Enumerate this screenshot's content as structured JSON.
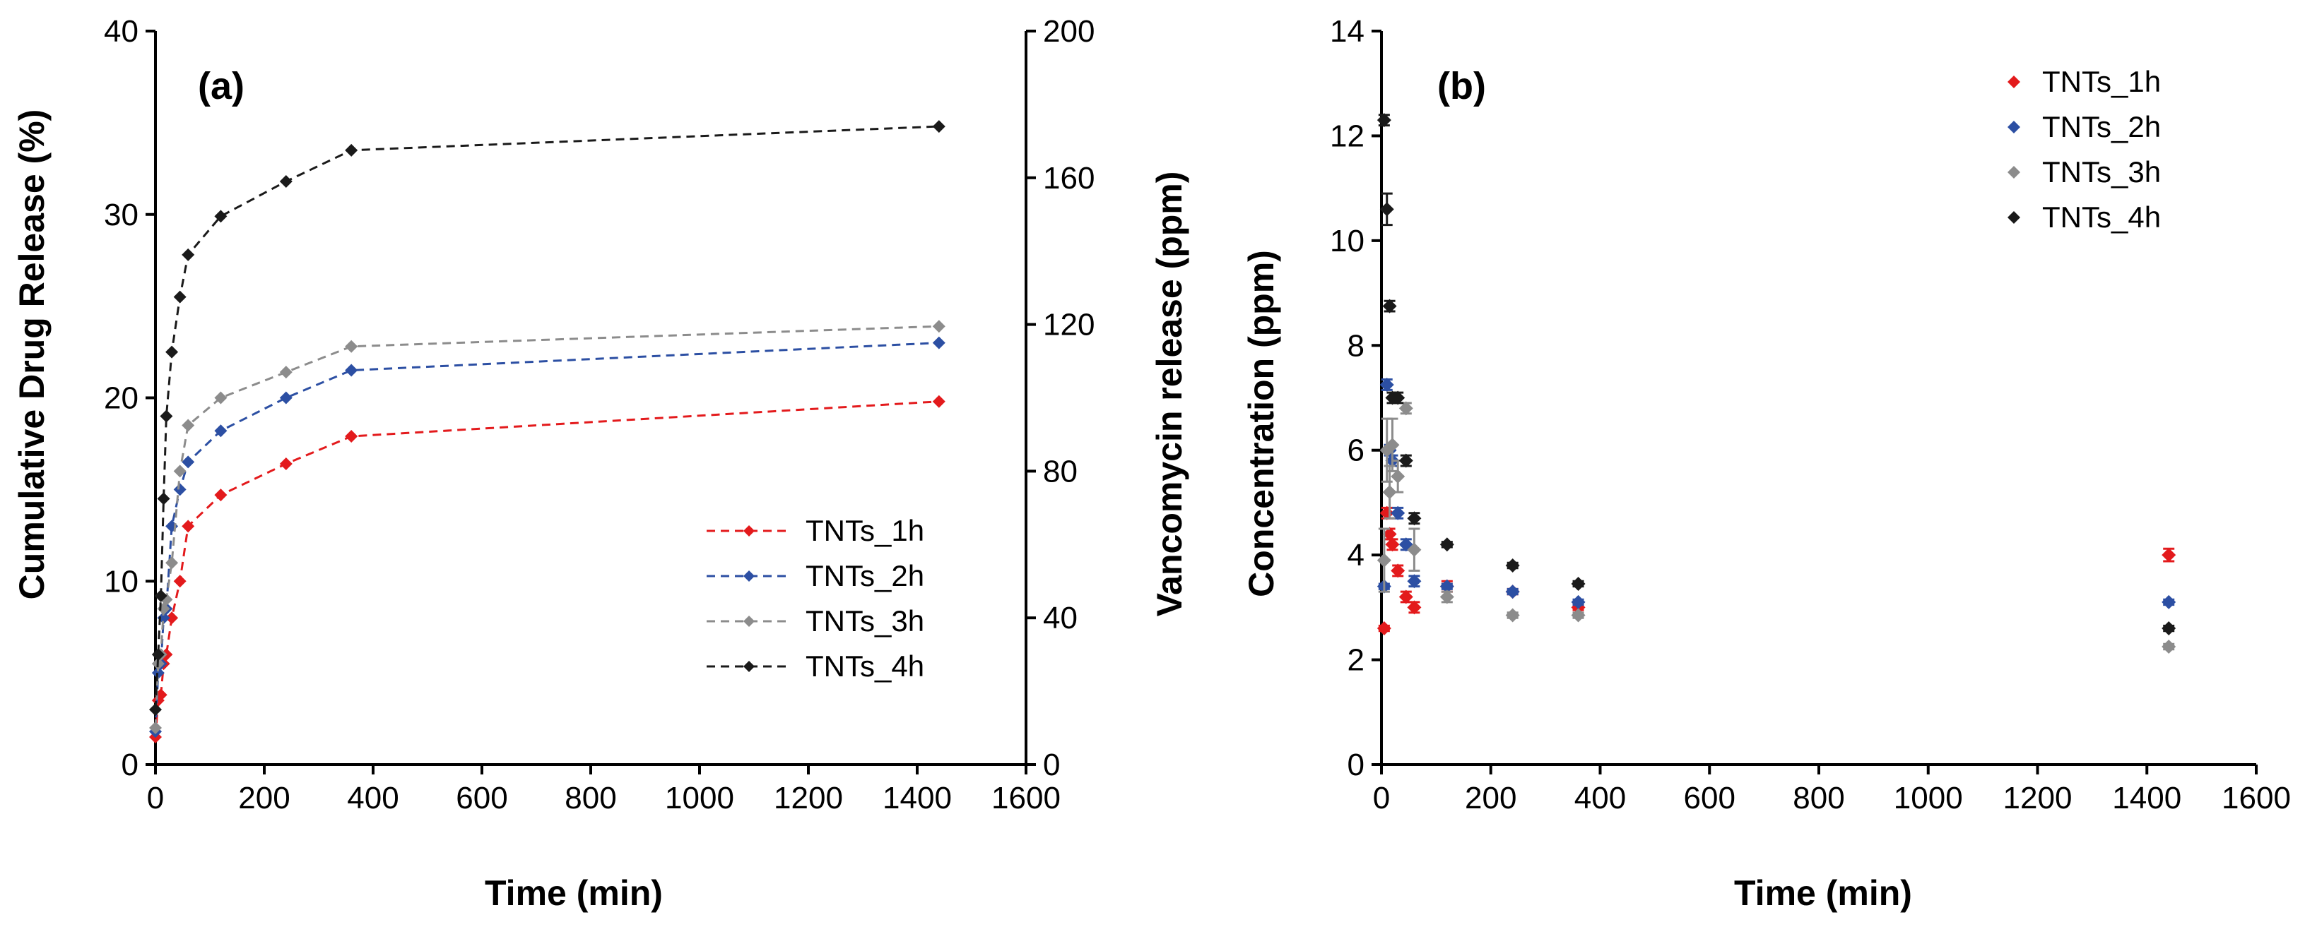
{
  "chart_data": [
    {
      "type": "line",
      "panel_label": "(a)",
      "xlabel": "Time (min)",
      "ylabel": "Cumulative Drug Release (%)",
      "y2label": "Vancomycin release (ppm)",
      "xlim": [
        0,
        1600
      ],
      "ylim": [
        0,
        40
      ],
      "y2lim": [
        0,
        200
      ],
      "xticks": [
        "0",
        "200",
        "400",
        "600",
        "800",
        "1000",
        "1200",
        "1400",
        "1600"
      ],
      "yticks": [
        "0",
        "10",
        "20",
        "30",
        "40"
      ],
      "y2ticks": [
        "0",
        "40",
        "80",
        "120",
        "160",
        "200"
      ],
      "legend_position": "center-right",
      "x": [
        0,
        5,
        10,
        15,
        20,
        30,
        45,
        60,
        120,
        240,
        360,
        1440
      ],
      "series": [
        {
          "name": "TNTs_1h",
          "color": "#e31a1c",
          "values": [
            1.5,
            3.5,
            3.8,
            5.5,
            6.0,
            8.0,
            10.0,
            13.0,
            14.7,
            16.4,
            17.9,
            19.8
          ]
        },
        {
          "name": "TNTs_2h",
          "color": "#2c4fa3",
          "values": [
            1.8,
            5.0,
            5.5,
            8.0,
            8.5,
            13.0,
            15.0,
            16.5,
            18.2,
            20.0,
            21.5,
            23.0
          ]
        },
        {
          "name": "TNTs_3h",
          "color": "#8c8c8c",
          "values": [
            2.0,
            5.5,
            6.0,
            8.5,
            9.0,
            11.0,
            16.0,
            18.5,
            20.0,
            21.4,
            22.8,
            23.9
          ]
        },
        {
          "name": "TNTs_4h",
          "color": "#1a1a1a",
          "values": [
            3.0,
            6.0,
            9.2,
            14.5,
            19.0,
            22.5,
            25.5,
            27.8,
            29.9,
            31.8,
            33.5,
            34.8
          ]
        }
      ]
    },
    {
      "type": "scatter",
      "panel_label": "(b)",
      "xlabel": "Time (min)",
      "ylabel": "Concentration (ppm)",
      "xlim": [
        0,
        1600
      ],
      "ylim": [
        0,
        14
      ],
      "xticks": [
        "0",
        "200",
        "400",
        "600",
        "800",
        "1000",
        "1200",
        "1400",
        "1600"
      ],
      "yticks": [
        "0",
        "2",
        "4",
        "6",
        "8",
        "10",
        "12",
        "14"
      ],
      "legend_position": "top-right",
      "x": [
        5,
        10,
        15,
        20,
        30,
        45,
        60,
        120,
        240,
        360,
        1440
      ],
      "series": [
        {
          "name": "TNTs_1h",
          "color": "#e31a1c",
          "values": [
            2.6,
            4.8,
            4.4,
            4.2,
            3.7,
            3.2,
            3.0,
            3.4,
            3.3,
            3.0,
            4.0
          ],
          "errors": [
            0.05,
            0.1,
            0.1,
            0.1,
            0.1,
            0.1,
            0.1,
            0.1,
            0.05,
            0.05,
            0.12
          ]
        },
        {
          "name": "TNTs_2h",
          "color": "#2c4fa3",
          "values": [
            3.4,
            7.25,
            6.0,
            5.8,
            4.8,
            4.2,
            3.5,
            3.4,
            3.3,
            3.1,
            3.1
          ],
          "errors": [
            0.05,
            0.1,
            0.1,
            0.1,
            0.1,
            0.1,
            0.1,
            0.05,
            0.05,
            0.05,
            0.05
          ]
        },
        {
          "name": "TNTs_3h",
          "color": "#8c8c8c",
          "values": [
            3.9,
            6.0,
            5.2,
            6.1,
            5.5,
            6.8,
            4.1,
            3.2,
            2.85,
            2.85,
            2.25
          ],
          "errors": [
            0.6,
            0.6,
            0.5,
            0.5,
            0.3,
            0.1,
            0.4,
            0.1,
            0.05,
            0.05,
            0.05
          ]
        },
        {
          "name": "TNTs_4h",
          "color": "#1a1a1a",
          "values": [
            12.3,
            10.6,
            8.75,
            7.0,
            7.0,
            5.8,
            4.7,
            4.2,
            3.8,
            3.45,
            2.6
          ],
          "errors": [
            0.1,
            0.3,
            0.1,
            0.1,
            0.1,
            0.1,
            0.1,
            0.05,
            0.05,
            0.05,
            0.05
          ]
        }
      ]
    }
  ]
}
